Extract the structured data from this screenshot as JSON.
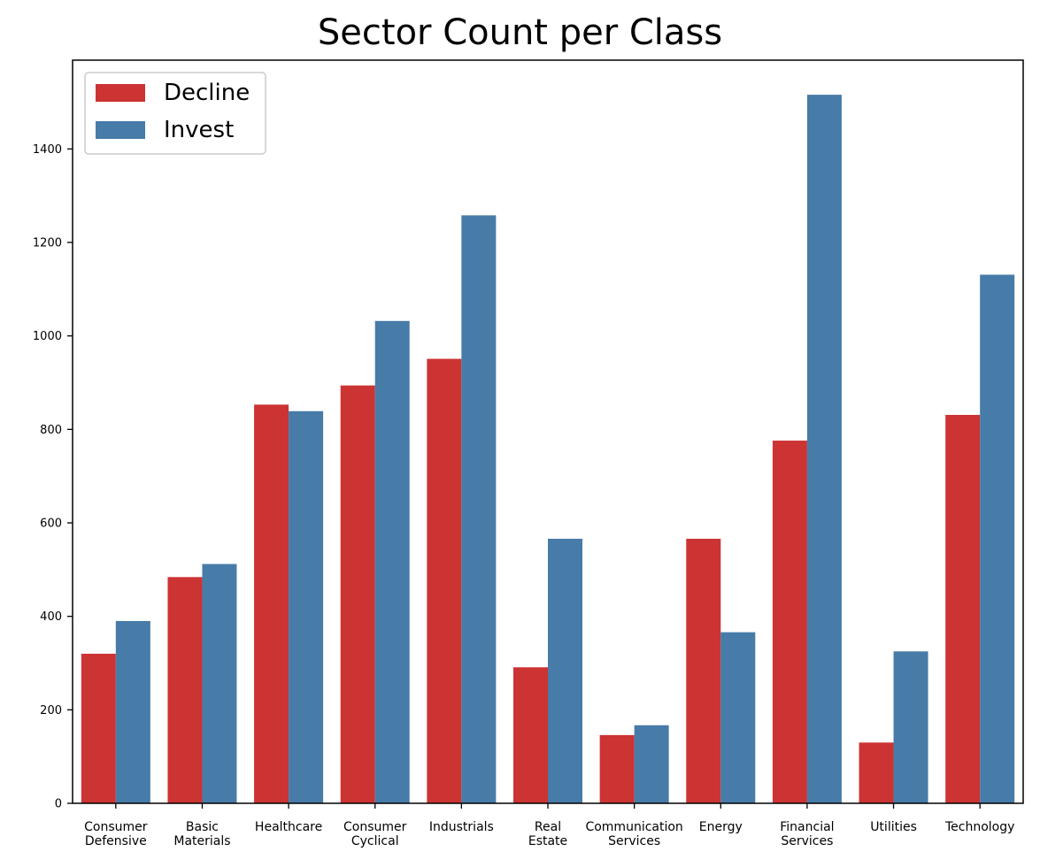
{
  "chart_data": {
    "type": "bar",
    "title": "Sector Count per Class",
    "xlabel": "",
    "ylabel": "",
    "categories": [
      [
        "Consumer",
        "Defensive"
      ],
      [
        "Basic",
        "Materials"
      ],
      [
        "Healthcare"
      ],
      [
        "Consumer",
        "Cyclical"
      ],
      [
        "Industrials"
      ],
      [
        "Real",
        "Estate"
      ],
      [
        "Communication",
        "Services"
      ],
      [
        "Energy"
      ],
      [
        "Financial",
        "Services"
      ],
      [
        "Utilities"
      ],
      [
        "Technology"
      ]
    ],
    "series": [
      {
        "name": "Decline",
        "color": "#cc3333",
        "values": [
          320,
          484,
          853,
          894,
          951,
          291,
          146,
          566,
          776,
          130,
          831
        ]
      },
      {
        "name": "Invest",
        "color": "#477ba8",
        "values": [
          390,
          512,
          839,
          1032,
          1258,
          566,
          167,
          366,
          1516,
          325,
          1131
        ]
      }
    ],
    "ylim": [
      0,
      1590
    ],
    "yticks": [
      0,
      200,
      400,
      600,
      800,
      1000,
      1200,
      1400
    ],
    "grid": false,
    "legend": "top-left"
  }
}
